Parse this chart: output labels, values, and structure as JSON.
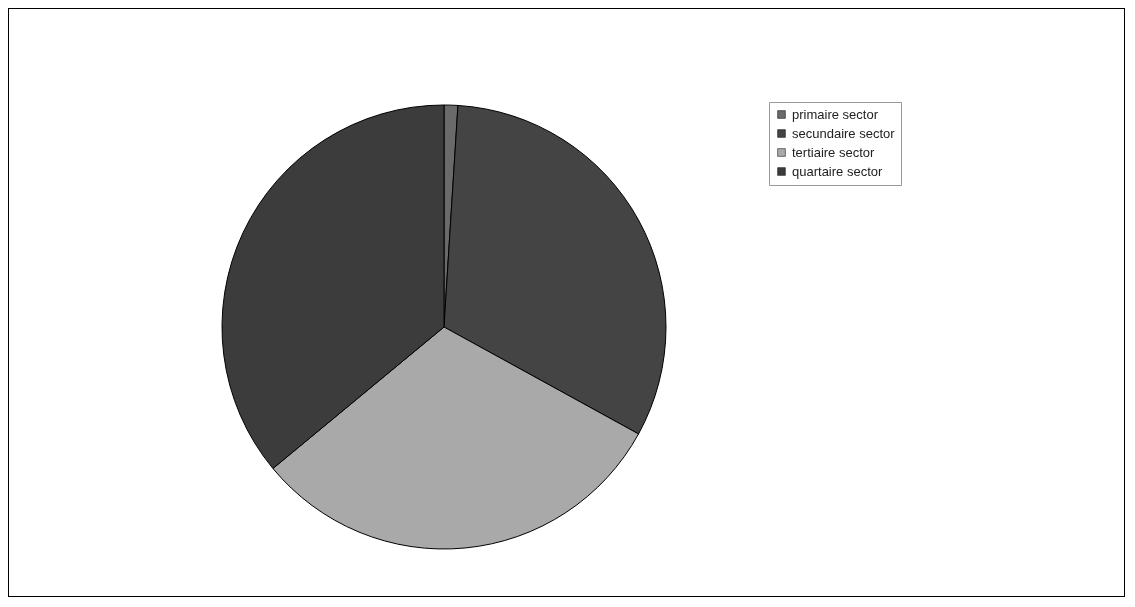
{
  "chart_data": {
    "type": "pie",
    "categories": [
      "primaire sector",
      "secundaire sector",
      "tertiaire sector",
      "quartaire sector"
    ],
    "values": [
      1,
      32,
      31,
      36
    ],
    "colors": [
      "#6a6a6a",
      "#444444",
      "#a9a9a9",
      "#3c3c3c"
    ],
    "legend": "right"
  }
}
